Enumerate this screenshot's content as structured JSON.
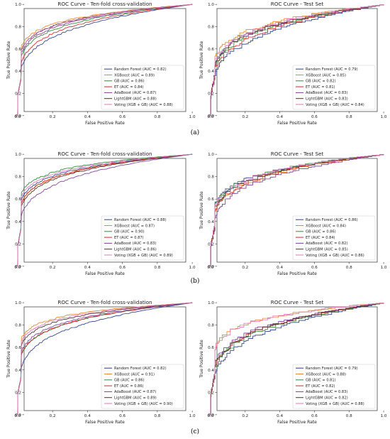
{
  "figure": {
    "row_labels": [
      "(a)",
      "(b)",
      "(c)"
    ]
  },
  "colors": {
    "Random Forest": "#2c3e8f",
    "XGBoost": "#e8872b",
    "GB": "#2e8b3a",
    "ET": "#d62728",
    "AdaBoost": "#7e3f98",
    "LightGBM": "#4a3227",
    "Voting": "#e377c2"
  },
  "chart_data": [
    {
      "type": "line",
      "title": "ROC Curve - Ten-fold cross-validation",
      "xlabel": "False Positive Rate",
      "ylabel": "True Positive Rate",
      "xlim": [
        0,
        1
      ],
      "ylim": [
        0,
        1
      ],
      "ticks": [
        "0.0",
        "0.2",
        "0.4",
        "0.6",
        "0.8",
        "1.0"
      ],
      "legend_placement": "lower-right",
      "series": [
        {
          "name": "Random Forest (AUC = 0.82)",
          "key": "Random Forest",
          "auc": 0.82
        },
        {
          "name": "XGBoost (AUC = 0.89)",
          "key": "XGBoost",
          "auc": 0.89
        },
        {
          "name": "GB (AUC = 0.86)",
          "key": "GB",
          "auc": 0.86
        },
        {
          "name": "ET (AUC = 0.84)",
          "key": "ET",
          "auc": 0.84
        },
        {
          "name": "AdaBoost (AUC = 0.87)",
          "key": "AdaBoost",
          "auc": 0.87
        },
        {
          "name": "LightGBM (AUC = 0.88)",
          "key": "LightGBM",
          "auc": 0.88
        },
        {
          "name": "Voting (XGB + GB) (AUC = 0.88)",
          "key": "Voting",
          "auc": 0.88
        }
      ]
    },
    {
      "type": "line",
      "title": "ROC Curve - Test Set",
      "xlabel": "False Positive Rate",
      "ylabel": "True Positive Rate",
      "xlim": [
        0,
        1
      ],
      "ylim": [
        0,
        1
      ],
      "ticks": [
        "0.0",
        "0.2",
        "0.4",
        "0.6",
        "0.8",
        "1.0"
      ],
      "legend_placement": "lower-right",
      "series": [
        {
          "name": "Random Forest (AUC = 0.79)",
          "key": "Random Forest",
          "auc": 0.79
        },
        {
          "name": "XGBoost (AUC = 0.85)",
          "key": "XGBoost",
          "auc": 0.85
        },
        {
          "name": "GB (AUC = 0.82)",
          "key": "GB",
          "auc": 0.82
        },
        {
          "name": "ET (AUC = 0.81)",
          "key": "ET",
          "auc": 0.81
        },
        {
          "name": "AdaBoost (AUC = 0.83)",
          "key": "AdaBoost",
          "auc": 0.83
        },
        {
          "name": "LightGBM (AUC = 0.83)",
          "key": "LightGBM",
          "auc": 0.83
        },
        {
          "name": "Voting (XGB + GB) (AUC = 0.84)",
          "key": "Voting",
          "auc": 0.84
        }
      ]
    },
    {
      "type": "line",
      "title": "ROC Curve - Ten-fold cross-validation",
      "xlabel": "False Positive Rate",
      "ylabel": "True Positive Rate",
      "xlim": [
        0,
        1
      ],
      "ylim": [
        0,
        1
      ],
      "ticks": [
        "0.0",
        "0.2",
        "0.4",
        "0.6",
        "0.8",
        "1.0"
      ],
      "legend_placement": "lower-right",
      "series": [
        {
          "name": "Random Forest (AUC = 0.88)",
          "key": "Random Forest",
          "auc": 0.88
        },
        {
          "name": "XGBoost (AUC = 0.87)",
          "key": "XGBoost",
          "auc": 0.87
        },
        {
          "name": "GB (AUC = 0.90)",
          "key": "GB",
          "auc": 0.9
        },
        {
          "name": "ET (AUC = 0.87)",
          "key": "ET",
          "auc": 0.87
        },
        {
          "name": "AdaBoost (AUC = 0.83)",
          "key": "AdaBoost",
          "auc": 0.83
        },
        {
          "name": "LightGBM (AUC = 0.86)",
          "key": "LightGBM",
          "auc": 0.86
        },
        {
          "name": "Voting (XGB + GB) (AUC = 0.89)",
          "key": "Voting",
          "auc": 0.89
        }
      ]
    },
    {
      "type": "line",
      "title": "ROC Curve - Test Set",
      "xlabel": "False Positive Rate",
      "ylabel": "True Positive Rate",
      "xlim": [
        0,
        1
      ],
      "ylim": [
        0,
        1
      ],
      "ticks": [
        "0.0",
        "0.2",
        "0.4",
        "0.6",
        "0.8",
        "1.0"
      ],
      "legend_placement": "lower-right",
      "series": [
        {
          "name": "Random Forest (AUC = 0.86)",
          "key": "Random Forest",
          "auc": 0.86
        },
        {
          "name": "XGBoost (AUC = 0.84)",
          "key": "XGBoost",
          "auc": 0.84
        },
        {
          "name": "GB (AUC = 0.86)",
          "key": "GB",
          "auc": 0.86
        },
        {
          "name": "ET (AUC = 0.84)",
          "key": "ET",
          "auc": 0.84
        },
        {
          "name": "AdaBoost (AUC = 0.82)",
          "key": "AdaBoost",
          "auc": 0.82
        },
        {
          "name": "LightGBM (AUC = 0.85)",
          "key": "LightGBM",
          "auc": 0.85
        },
        {
          "name": "Voting (XGB + GB) (AUC = 0.86)",
          "key": "Voting",
          "auc": 0.86
        }
      ]
    },
    {
      "type": "line",
      "title": "ROC Curve - Ten-fold cross-validation",
      "xlabel": "False Positive Rate",
      "ylabel": "True Positive Rate",
      "xlim": [
        0,
        1
      ],
      "ylim": [
        0,
        1
      ],
      "ticks": [
        "0.0",
        "0.2",
        "0.4",
        "0.6",
        "0.8",
        "1.0"
      ],
      "legend_placement": "lower-right",
      "series": [
        {
          "name": "Random Forest (AUC = 0.82)",
          "key": "Random Forest",
          "auc": 0.82
        },
        {
          "name": "XGBoost (AUC = 0.91)",
          "key": "XGBoost",
          "auc": 0.91
        },
        {
          "name": "GB (AUC = 0.86)",
          "key": "GB",
          "auc": 0.86
        },
        {
          "name": "ET (AUC = 0.86)",
          "key": "ET",
          "auc": 0.86
        },
        {
          "name": "AdaBoost (AUC = 0.87)",
          "key": "AdaBoost",
          "auc": 0.87
        },
        {
          "name": "LightGBM (AUC = 0.89)",
          "key": "LightGBM",
          "auc": 0.89
        },
        {
          "name": "Voting (XGB + GB) (AUC = 0.90)",
          "key": "Voting",
          "auc": 0.9
        }
      ]
    },
    {
      "type": "line",
      "title": "ROC Curve - Test Set",
      "xlabel": "False Positive Rate",
      "ylabel": "True Positive Rate",
      "xlim": [
        0,
        1
      ],
      "ylim": [
        0,
        1
      ],
      "ticks": [
        "0.0",
        "0.2",
        "0.4",
        "0.6",
        "0.8",
        "1.0"
      ],
      "legend_placement": "lower-right",
      "series": [
        {
          "name": "Random Forest (AUC = 0.79)",
          "key": "Random Forest",
          "auc": 0.79
        },
        {
          "name": "XGBoost (AUC = 0.88)",
          "key": "XGBoost",
          "auc": 0.88
        },
        {
          "name": "GB (AUC = 0.81)",
          "key": "GB",
          "auc": 0.81
        },
        {
          "name": "ET (AUC = 0.82)",
          "key": "ET",
          "auc": 0.82
        },
        {
          "name": "AdaBoost (AUC = 0.83)",
          "key": "AdaBoost",
          "auc": 0.83
        },
        {
          "name": "LightGBM (AUC = 0.82)",
          "key": "LightGBM",
          "auc": 0.82
        },
        {
          "name": "Voting (XGB + GB) (AUC = 0.88)",
          "key": "Voting",
          "auc": 0.88
        }
      ]
    }
  ]
}
